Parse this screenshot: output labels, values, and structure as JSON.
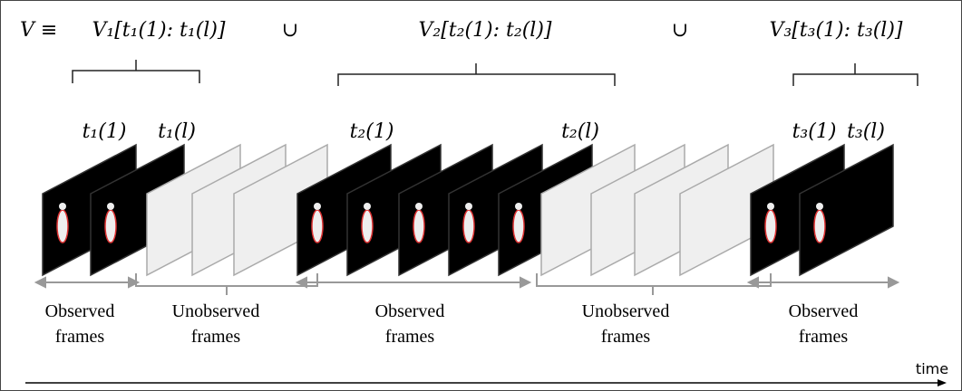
{
  "formula": {
    "lhs": "V ≡",
    "parts": [
      "V₁[t₁(1): t₁(l)]",
      "∪",
      "V₂[t₂(1): t₂(l)]",
      "∪",
      "V₃[t₃(1): t₃(l)]"
    ]
  },
  "frame_labels": [
    "t₁(1)",
    "t₁(l)",
    "t₂(1)",
    "t₂(l)",
    "t₃(1)",
    "t₃(l)"
  ],
  "segments": [
    [
      "Observed",
      "frames"
    ],
    [
      "Unobserved",
      "frames"
    ],
    [
      "Observed",
      "frames"
    ],
    [
      "Unobserved",
      "frames"
    ],
    [
      "Observed",
      "frames"
    ]
  ],
  "axis_label": "time"
}
